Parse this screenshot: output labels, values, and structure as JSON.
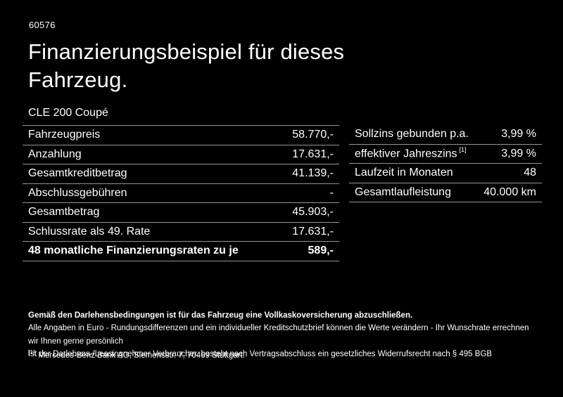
{
  "page": {
    "id_number": "60576",
    "title_line1": "Finanzierungsbeispiel für dieses",
    "title_line2": "Fahrzeug.",
    "model": "CLE 200 Coupé"
  },
  "finance_table": {
    "rows": [
      {
        "label": "Fahrzeugpreis",
        "value": "58.770,-"
      },
      {
        "label": "Anzahlung",
        "value": "17.631,-"
      },
      {
        "label": "Gesamtkreditbetrag",
        "value": "41.139,-"
      },
      {
        "label": "Abschlussgebühren",
        "value": "-"
      },
      {
        "label": "Gesamtbetrag",
        "value": "45.903,-"
      },
      {
        "label": "Schlussrate als 49. Rate",
        "value": "17.631,-"
      },
      {
        "label": "48 monatliche Finanzierungsraten zu je",
        "value": "589,-"
      }
    ]
  },
  "conditions_table": {
    "rows": [
      {
        "label": "Sollzins gebunden p.a.",
        "value": "3,99 %"
      },
      {
        "label": "effektiver Jahreszins",
        "sup": "[1]",
        "value": "3,99 %"
      },
      {
        "label": "Laufzeit in Monaten",
        "value": "48"
      },
      {
        "label": "Gesamtlaufleistung",
        "value": "40.000 km"
      }
    ]
  },
  "footer": {
    "bold_note": "Gemäß den Darlehensbedingungen ist für das Fahrzeug eine Vollkaskoversicherung abzuschließen.",
    "note_line1": "Alle Angaben in Euro - Rundungsdifferenzen und ein individueller Kreditschutzbrief können die Werte verändern - Ihr Wunschrate errechnen wir Ihnen gerne persönlich",
    "note_line2": "Ist der Darlehens-/Leasingnehmer Verbraucher, besteht nach Vertragsabschluss ein gesetzliches Widerrufsrecht nach § 495 BGB",
    "footnote_marker": "[1]",
    "footnote_text": "Mercedes-Benz Bank AG, Siemensstr. 7, 70469 Stuttgart."
  },
  "colors": {
    "background": "#000000",
    "text": "#ffffff",
    "divider": "#969696"
  }
}
